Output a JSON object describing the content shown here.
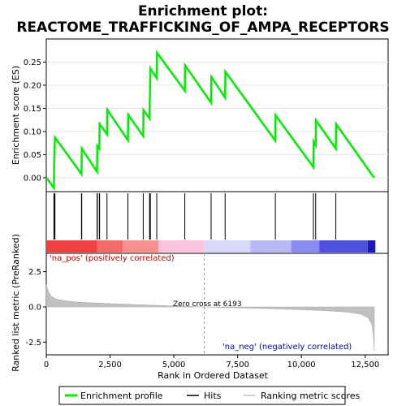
{
  "chart_data": {
    "type": "line",
    "title_line1": "Enrichment plot:",
    "title_line2": "REACTOME_TRAFFICKING_OF_AMPA_RECEPTORS",
    "es_panel": {
      "ylabel": "Enrichment score (ES)",
      "ylim": [
        -0.03,
        0.3
      ],
      "yticks": [
        "0.00",
        "0.05",
        "0.10",
        "0.15",
        "0.20",
        "0.25"
      ],
      "ytick_values": [
        0.0,
        0.05,
        0.1,
        0.15,
        0.2,
        0.25
      ],
      "line_color": "#00ee00",
      "series_name": "Enrichment profile",
      "points": [
        [
          0,
          0.0
        ],
        [
          300,
          -0.022
        ],
        [
          310,
          0.033
        ],
        [
          340,
          0.087
        ],
        [
          1380,
          0.008
        ],
        [
          1390,
          0.063
        ],
        [
          1990,
          0.013
        ],
        [
          2000,
          0.069
        ],
        [
          2080,
          0.063
        ],
        [
          2090,
          0.116
        ],
        [
          2380,
          0.094
        ],
        [
          2390,
          0.147
        ],
        [
          3200,
          0.081
        ],
        [
          3210,
          0.136
        ],
        [
          3800,
          0.09
        ],
        [
          3810,
          0.146
        ],
        [
          4050,
          0.128
        ],
        [
          4060,
          0.182
        ],
        [
          4080,
          0.236
        ],
        [
          4330,
          0.215
        ],
        [
          4340,
          0.27
        ],
        [
          5430,
          0.188
        ],
        [
          5440,
          0.243
        ],
        [
          6460,
          0.162
        ],
        [
          6470,
          0.218
        ],
        [
          7010,
          0.173
        ],
        [
          7020,
          0.229
        ],
        [
          8980,
          0.08
        ],
        [
          8990,
          0.135
        ],
        [
          10470,
          0.023
        ],
        [
          10480,
          0.078
        ],
        [
          10560,
          0.07
        ],
        [
          10570,
          0.124
        ],
        [
          11350,
          0.063
        ],
        [
          11360,
          0.116
        ],
        [
          12850,
          0.0
        ]
      ]
    },
    "hits": [
      300,
      310,
      340,
      1380,
      1390,
      1990,
      2000,
      2080,
      2090,
      2380,
      3200,
      3800,
      4050,
      4060,
      4080,
      4330,
      5430,
      6460,
      7010,
      8980,
      10470,
      10560,
      11350
    ],
    "heatmap": {
      "segments": [
        {
          "from": 0,
          "to": 2000,
          "color": "#f04040"
        },
        {
          "from": 2000,
          "to": 3000,
          "color": "#f46a6a"
        },
        {
          "from": 3000,
          "to": 4400,
          "color": "#f89090"
        },
        {
          "from": 4400,
          "to": 6200,
          "color": "#fcc4dc"
        },
        {
          "from": 6200,
          "to": 8000,
          "color": "#d8d8fa"
        },
        {
          "from": 8000,
          "to": 9600,
          "color": "#b8b8f4"
        },
        {
          "from": 9600,
          "to": 10700,
          "color": "#8a8af0"
        },
        {
          "from": 10700,
          "to": 12600,
          "color": "#5050e0"
        },
        {
          "from": 12600,
          "to": 12900,
          "color": "#1a1ac0"
        }
      ]
    },
    "metric_panel": {
      "ylabel": "Ranked list metric (PreRanked)",
      "ylim": [
        -3.4,
        3.8
      ],
      "yticks": [
        "2.5",
        "0.0",
        "-2.5"
      ],
      "ytick_values": [
        2.5,
        0.0,
        -2.5
      ],
      "fill_color": "#c0c0c0",
      "series_name": "Ranking metric scores",
      "profile": [
        [
          0,
          1.6
        ],
        [
          80,
          1.1
        ],
        [
          200,
          0.75
        ],
        [
          400,
          0.55
        ],
        [
          700,
          0.45
        ],
        [
          1200,
          0.35
        ],
        [
          2000,
          0.27
        ],
        [
          3000,
          0.2
        ],
        [
          4000,
          0.13
        ],
        [
          5000,
          0.07
        ],
        [
          6193,
          0.0
        ],
        [
          7000,
          -0.04
        ],
        [
          8000,
          -0.09
        ],
        [
          9000,
          -0.14
        ],
        [
          10000,
          -0.2
        ],
        [
          11000,
          -0.28
        ],
        [
          11800,
          -0.37
        ],
        [
          12300,
          -0.5
        ],
        [
          12600,
          -0.75
        ],
        [
          12750,
          -1.2
        ],
        [
          12820,
          -2.0
        ],
        [
          12860,
          -3.1
        ]
      ],
      "zero_cross_label": "Zero cross at 6193",
      "zero_cross": 6193,
      "pos_label": "'na_pos' (positively correlated)",
      "neg_label": "'na_neg' (negatively correlated)"
    },
    "xaxis": {
      "xlabel": "Rank in Ordered Dataset",
      "xlim": [
        0,
        13400
      ],
      "xticks": [
        "0",
        "2,500",
        "5,000",
        "7,500",
        "10,000",
        "12,500"
      ],
      "xtick_values": [
        0,
        2500,
        5000,
        7500,
        10000,
        12500
      ]
    },
    "legend": {
      "items": [
        "Enrichment profile",
        "Hits",
        "Ranking metric scores"
      ],
      "placement": "bottom"
    }
  }
}
